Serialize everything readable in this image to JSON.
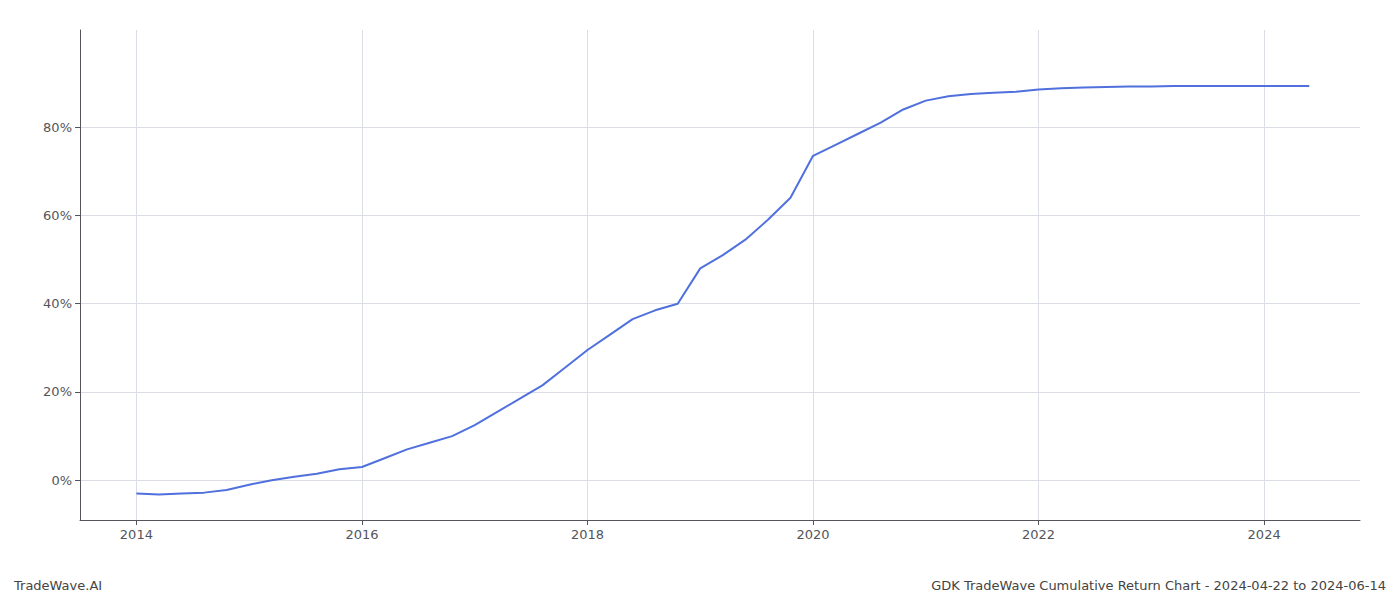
{
  "chart_data": {
    "type": "line",
    "annotations": [
      "TradeWave.AI",
      "GDK TradeWave Cumulative Return Chart - 2024-04-22 to 2024-06-14"
    ],
    "x": [
      2014.0,
      2014.2,
      2014.4,
      2014.6,
      2014.8,
      2015.0,
      2015.2,
      2015.4,
      2015.6,
      2015.8,
      2016.0,
      2016.2,
      2016.4,
      2016.6,
      2016.8,
      2017.0,
      2017.2,
      2017.4,
      2017.6,
      2017.8,
      2018.0,
      2018.2,
      2018.4,
      2018.6,
      2018.8,
      2019.0,
      2019.2,
      2019.4,
      2019.6,
      2019.8,
      2020.0,
      2020.2,
      2020.4,
      2020.6,
      2020.8,
      2021.0,
      2021.2,
      2021.4,
      2021.6,
      2021.8,
      2022.0,
      2022.2,
      2022.4,
      2022.6,
      2022.8,
      2023.0,
      2023.2,
      2023.4,
      2023.6,
      2023.8,
      2024.0,
      2024.4
    ],
    "values": [
      -0.03,
      -0.032,
      -0.03,
      -0.028,
      -0.022,
      -0.01,
      0.0,
      0.008,
      0.015,
      0.025,
      0.03,
      0.05,
      0.07,
      0.085,
      0.1,
      0.125,
      0.155,
      0.185,
      0.215,
      0.255,
      0.295,
      0.33,
      0.365,
      0.385,
      0.4,
      0.48,
      0.51,
      0.545,
      0.59,
      0.64,
      0.735,
      0.76,
      0.785,
      0.81,
      0.84,
      0.86,
      0.87,
      0.875,
      0.878,
      0.88,
      0.885,
      0.888,
      0.89,
      0.891,
      0.892,
      0.892,
      0.893,
      0.893,
      0.893,
      0.893,
      0.893,
      0.893
    ],
    "xlim": [
      2013.5,
      2024.85
    ],
    "ylim": [
      -0.09,
      1.02
    ],
    "xticks": [
      2014,
      2016,
      2018,
      2020,
      2022,
      2024
    ],
    "yticks": [
      {
        "value": 0.0,
        "label": "0%"
      },
      {
        "value": 0.2,
        "label": "20%"
      },
      {
        "value": 0.4,
        "label": "40%"
      },
      {
        "value": 0.6,
        "label": "60%"
      },
      {
        "value": 0.8,
        "label": "80%"
      }
    ],
    "grid": true
  }
}
